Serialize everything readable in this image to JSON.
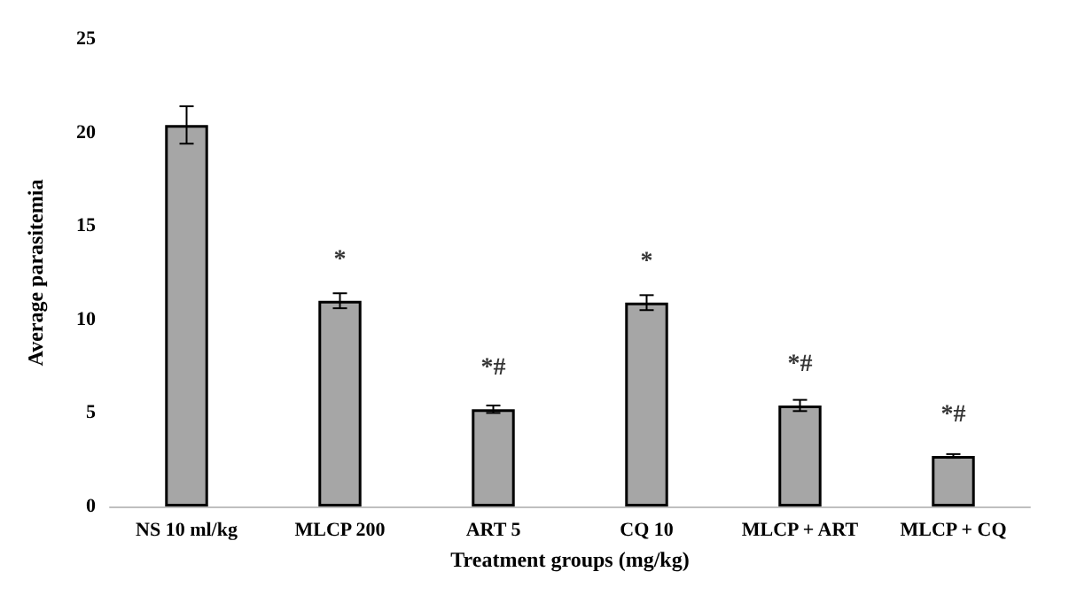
{
  "chart_data": {
    "type": "bar",
    "xlabel": "Treatment groups (mg/kg)",
    "ylabel": "Average parasitemia",
    "categories": [
      "NS 10 ml/kg",
      "MLCP 200",
      "ART 5",
      "CQ 10",
      "MLCP + ART",
      "MLCP + CQ"
    ],
    "values": [
      20.4,
      11.0,
      5.2,
      10.9,
      5.4,
      2.7
    ],
    "errors": [
      1.0,
      0.4,
      0.2,
      0.4,
      0.3,
      0.1
    ],
    "color": "#a6a6a6",
    "ylim": [
      0,
      25
    ],
    "yticks": [
      0,
      5,
      10,
      15,
      20,
      25
    ],
    "grid": false,
    "annotations": [
      {
        "text": "*",
        "x": "MLCP 200",
        "y": 11.0
      },
      {
        "text": "*#",
        "x": "ART 5",
        "y": 5.2
      },
      {
        "text": "*",
        "x": "CQ 10",
        "y": 10.9
      },
      {
        "text": "*#",
        "x": "MLCP + ART",
        "y": 5.4
      },
      {
        "text": "*#",
        "x": "MLCP + CQ",
        "y": 2.7
      }
    ]
  }
}
